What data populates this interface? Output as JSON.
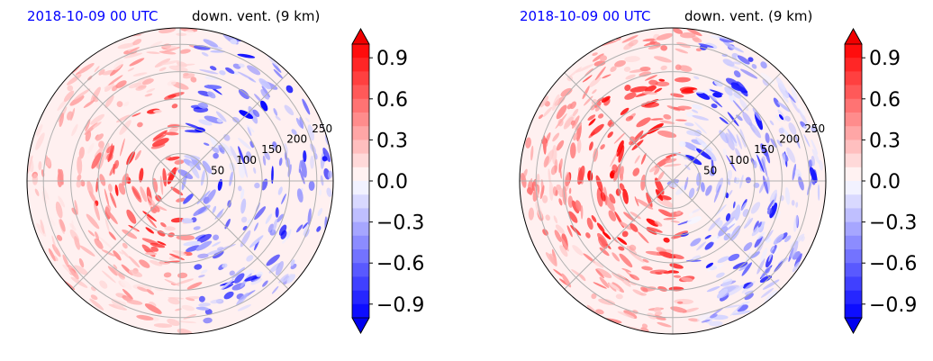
{
  "chart_data": [
    {
      "type": "heatmap",
      "projection": "polar",
      "timestamp": "2018-10-09 00 UTC",
      "title": "down. vent. (9 km)",
      "timestamp_color": "#0000ff",
      "radial_tick_labels": [
        "50",
        "100",
        "150",
        "200",
        "250"
      ],
      "radial_ticks": [
        50,
        100,
        150,
        200,
        250
      ],
      "rlim": [
        0,
        280
      ],
      "colorbar": {
        "ticks": [
          0.9,
          0.6,
          0.3,
          0.0,
          -0.3,
          -0.6,
          -0.9
        ],
        "tick_labels": [
          "0.9",
          "0.6",
          "0.3",
          "0.0",
          "−0.3",
          "−0.6",
          "−0.9"
        ],
        "range": [
          -1.0,
          1.0
        ],
        "extend": "both",
        "colormap": "bwr",
        "positive_color": "#ff0000",
        "negative_color": "#0000ff"
      },
      "grid": true
    },
    {
      "type": "heatmap",
      "projection": "polar",
      "timestamp": "2018-10-09 00 UTC",
      "title": "down. vent. (9 km)",
      "timestamp_color": "#0000ff",
      "radial_tick_labels": [
        "50",
        "100",
        "150",
        "200",
        "250"
      ],
      "radial_ticks": [
        50,
        100,
        150,
        200,
        250
      ],
      "rlim": [
        0,
        280
      ],
      "colorbar": {
        "ticks": [
          0.9,
          0.6,
          0.3,
          0.0,
          -0.3,
          -0.6,
          -0.9
        ],
        "tick_labels": [
          "0.9",
          "0.6",
          "0.3",
          "0.0",
          "−0.3",
          "−0.6",
          "−0.9"
        ],
        "range": [
          -1.0,
          1.0
        ],
        "extend": "both",
        "colormap": "bwr",
        "positive_color": "#ff0000",
        "negative_color": "#0000ff"
      },
      "grid": true
    }
  ]
}
